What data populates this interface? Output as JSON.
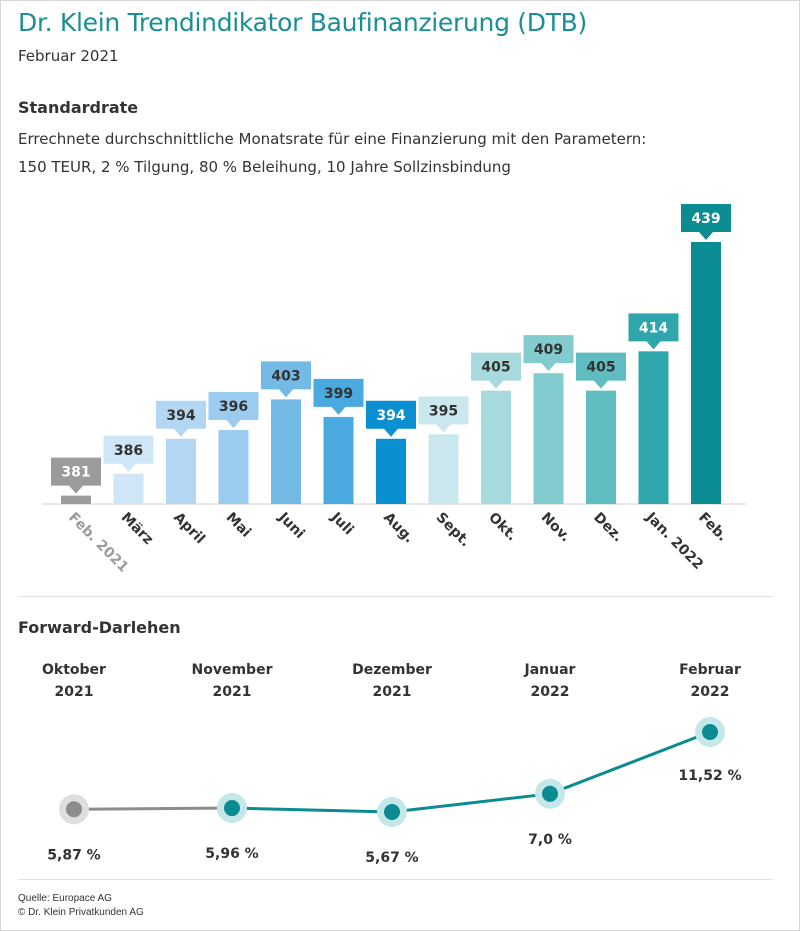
{
  "header": {
    "title": "Dr. Klein Trendindikator Baufinanzierung (DTB)",
    "subtitle": "Februar 2021"
  },
  "standardrate": {
    "heading": "Standardrate",
    "description_line1": "Errechnete durchschnittliche Monatsrate für eine Finanzierung mit den Parametern:",
    "description_line2": "150 TEUR, 2 % Tilgung, 80 % Beleihung, 10 Jahre Sollzinsbindung"
  },
  "forward": {
    "heading": "Forward-Darlehen"
  },
  "footer": {
    "source": "Quelle: Europace AG",
    "copyright": "© Dr. Klein Privatkunden AG"
  },
  "colors": {
    "title": "#1a8f95",
    "teal": "#0a8c92",
    "grey": "#8c8c8c",
    "bars": [
      "#9b9b9b",
      "#cfe6f7",
      "#b3d7f2",
      "#9bcbee",
      "#74bae6",
      "#4aaadf",
      "#0a8fd1",
      "#c9e7ec",
      "#a6dadd",
      "#82cbcf",
      "#5fbcc0",
      "#2fa6ab",
      "#0a8c92"
    ],
    "labels": [
      "#9b9b9b",
      "#cfe6f7",
      "#b3d7f2",
      "#9bcbee",
      "#74bae6",
      "#4aaadf",
      "#0a8fd1",
      "#c9e7ec",
      "#a6dadd",
      "#82cbcf",
      "#5fbcc0",
      "#2fa6ab",
      "#0a8c92"
    ],
    "label_text": [
      "#ffffff",
      "#333333",
      "#333333",
      "#333333",
      "#333333",
      "#333333",
      "#ffffff",
      "#333333",
      "#333333",
      "#333333",
      "#333333",
      "#ffffff",
      "#ffffff"
    ]
  },
  "chart_data": [
    {
      "type": "bar",
      "title": "Standardrate",
      "categories": [
        "Feb. 2021",
        "März",
        "April",
        "Mai",
        "Juni",
        "Juli",
        "Aug.",
        "Sept.",
        "Okt.",
        "Nov.",
        "Dez.",
        "Jan. 2022",
        "Feb."
      ],
      "values": [
        381,
        386,
        394,
        396,
        403,
        399,
        394,
        395,
        405,
        409,
        405,
        414,
        439
      ],
      "ylim": [
        380,
        439
      ],
      "xlabel": "",
      "ylabel": "",
      "grid": false
    },
    {
      "type": "line",
      "title": "Forward-Darlehen",
      "categories": [
        [
          "Oktober",
          "2021"
        ],
        [
          "November",
          "2021"
        ],
        [
          "Dezember",
          "2021"
        ],
        [
          "Januar",
          "2022"
        ],
        [
          "Februar",
          "2022"
        ]
      ],
      "values": [
        5.87,
        5.96,
        5.67,
        7.0,
        11.52
      ],
      "value_labels": [
        "5,87 %",
        "5,96 %",
        "5,67 %",
        "7,0 %",
        "11,52 %"
      ],
      "grid": false
    }
  ]
}
